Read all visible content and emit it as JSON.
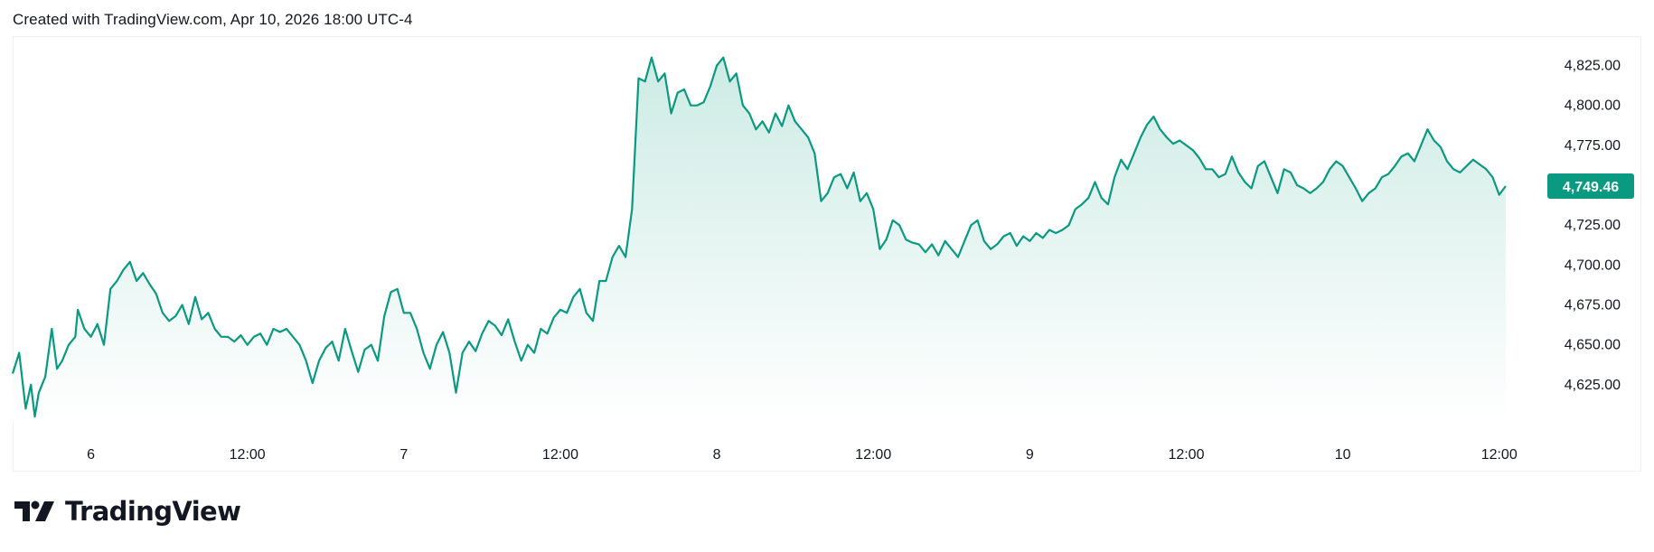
{
  "header": {
    "caption": "Created with TradingView.com, Apr 10, 2026 18:00 UTC-4"
  },
  "brand": {
    "name": "TradingView",
    "logo_icon": "tradingview-logo-icon"
  },
  "colors": {
    "line": "#0a9981",
    "fill_top": "#cdebe4",
    "fill_bottom": "#ffffff",
    "price_badge_bg": "#0a9981",
    "price_badge_text": "#ffffff",
    "axis_text": "#131722",
    "frame": "#eef0f3"
  },
  "chart_data": {
    "type": "area",
    "x_unit": "hours since Apr 5, 2026 18:00 UTC-4",
    "ylim": [
      4600,
      4840
    ],
    "xlim": [
      0,
      117
    ],
    "grid": false,
    "y_ticks": [
      {
        "value": 4625,
        "label": "4,625.00"
      },
      {
        "value": 4650,
        "label": "4,650.00"
      },
      {
        "value": 4675,
        "label": "4,675.00"
      },
      {
        "value": 4700,
        "label": "4,700.00"
      },
      {
        "value": 4725,
        "label": "4,725.00"
      },
      {
        "value": 4750,
        "label": "4,750.00"
      },
      {
        "value": 4775,
        "label": "4,775.00"
      },
      {
        "value": 4800,
        "label": "4,800.00"
      },
      {
        "value": 4825,
        "label": "4,825.00"
      }
    ],
    "x_ticks": [
      {
        "value": 6,
        "label": "6"
      },
      {
        "value": 18,
        "label": "12:00"
      },
      {
        "value": 30,
        "label": "7"
      },
      {
        "value": 42,
        "label": "12:00"
      },
      {
        "value": 54,
        "label": "8"
      },
      {
        "value": 66,
        "label": "12:00"
      },
      {
        "value": 78,
        "label": "9"
      },
      {
        "value": 90,
        "label": "12:00"
      },
      {
        "value": 102,
        "label": "10"
      },
      {
        "value": 114,
        "label": "12:00"
      }
    ],
    "last_price": {
      "value": 4749.46,
      "label": "4,749.46"
    },
    "series": [
      {
        "points": [
          [
            0.0,
            4632
          ],
          [
            0.5,
            4645
          ],
          [
            1.0,
            4610
          ],
          [
            1.4,
            4625
          ],
          [
            1.7,
            4605
          ],
          [
            2.0,
            4620
          ],
          [
            2.5,
            4630
          ],
          [
            3.0,
            4660
          ],
          [
            3.4,
            4635
          ],
          [
            3.8,
            4640
          ],
          [
            4.3,
            4650
          ],
          [
            4.8,
            4655
          ],
          [
            5.0,
            4672
          ],
          [
            5.5,
            4660
          ],
          [
            6.0,
            4655
          ],
          [
            6.5,
            4663
          ],
          [
            7.0,
            4650
          ],
          [
            7.5,
            4685
          ],
          [
            8.0,
            4690
          ],
          [
            8.5,
            4697
          ],
          [
            9.0,
            4702
          ],
          [
            9.5,
            4690
          ],
          [
            10.0,
            4695
          ],
          [
            10.5,
            4688
          ],
          [
            11.0,
            4682
          ],
          [
            11.5,
            4670
          ],
          [
            12.0,
            4665
          ],
          [
            12.5,
            4668
          ],
          [
            13.0,
            4675
          ],
          [
            13.5,
            4663
          ],
          [
            14.0,
            4680
          ],
          [
            14.5,
            4666
          ],
          [
            15.0,
            4670
          ],
          [
            15.5,
            4660
          ],
          [
            16.0,
            4655
          ],
          [
            16.5,
            4655
          ],
          [
            17.0,
            4652
          ],
          [
            17.5,
            4656
          ],
          [
            18.0,
            4650
          ],
          [
            18.5,
            4655
          ],
          [
            19.0,
            4657
          ],
          [
            19.5,
            4650
          ],
          [
            20.0,
            4660
          ],
          [
            20.5,
            4658
          ],
          [
            21.0,
            4660
          ],
          [
            21.5,
            4655
          ],
          [
            22.0,
            4650
          ],
          [
            22.5,
            4640
          ],
          [
            23.0,
            4626
          ],
          [
            23.5,
            4640
          ],
          [
            24.0,
            4648
          ],
          [
            24.5,
            4652
          ],
          [
            25.0,
            4640
          ],
          [
            25.5,
            4660
          ],
          [
            26.0,
            4646
          ],
          [
            26.5,
            4633
          ],
          [
            27.0,
            4647
          ],
          [
            27.5,
            4650
          ],
          [
            28.0,
            4640
          ],
          [
            28.5,
            4668
          ],
          [
            29.0,
            4683
          ],
          [
            29.5,
            4685
          ],
          [
            30.0,
            4670
          ],
          [
            30.5,
            4670
          ],
          [
            31.0,
            4660
          ],
          [
            31.5,
            4645
          ],
          [
            32.0,
            4635
          ],
          [
            32.5,
            4650
          ],
          [
            33.0,
            4658
          ],
          [
            33.5,
            4645
          ],
          [
            34.0,
            4620
          ],
          [
            34.5,
            4645
          ],
          [
            35.0,
            4652
          ],
          [
            35.5,
            4646
          ],
          [
            36.0,
            4657
          ],
          [
            36.5,
            4665
          ],
          [
            37.0,
            4662
          ],
          [
            37.5,
            4656
          ],
          [
            38.0,
            4666
          ],
          [
            38.5,
            4652
          ],
          [
            39.0,
            4640
          ],
          [
            39.5,
            4650
          ],
          [
            40.0,
            4645
          ],
          [
            40.5,
            4660
          ],
          [
            41.0,
            4657
          ],
          [
            41.5,
            4667
          ],
          [
            42.0,
            4672
          ],
          [
            42.5,
            4670
          ],
          [
            43.0,
            4680
          ],
          [
            43.5,
            4685
          ],
          [
            44.0,
            4670
          ],
          [
            44.5,
            4665
          ],
          [
            45.0,
            4690
          ],
          [
            45.5,
            4690
          ],
          [
            46.0,
            4705
          ],
          [
            46.5,
            4712
          ],
          [
            47.0,
            4705
          ],
          [
            47.5,
            4735
          ],
          [
            48.0,
            4817
          ],
          [
            48.5,
            4815
          ],
          [
            49.0,
            4830
          ],
          [
            49.5,
            4815
          ],
          [
            50.0,
            4820
          ],
          [
            50.5,
            4795
          ],
          [
            51.0,
            4808
          ],
          [
            51.5,
            4810
          ],
          [
            52.0,
            4800
          ],
          [
            52.5,
            4800
          ],
          [
            53.0,
            4802
          ],
          [
            53.5,
            4812
          ],
          [
            54.0,
            4825
          ],
          [
            54.5,
            4830
          ],
          [
            55.0,
            4815
          ],
          [
            55.5,
            4820
          ],
          [
            56.0,
            4800
          ],
          [
            56.5,
            4795
          ],
          [
            57.0,
            4785
          ],
          [
            57.5,
            4790
          ],
          [
            58.0,
            4783
          ],
          [
            58.5,
            4795
          ],
          [
            59.0,
            4787
          ],
          [
            59.5,
            4800
          ],
          [
            60.0,
            4790
          ],
          [
            60.5,
            4785
          ],
          [
            61.0,
            4780
          ],
          [
            61.5,
            4770
          ],
          [
            62.0,
            4740
          ],
          [
            62.5,
            4745
          ],
          [
            63.0,
            4755
          ],
          [
            63.5,
            4757
          ],
          [
            64.0,
            4748
          ],
          [
            64.5,
            4758
          ],
          [
            65.0,
            4740
          ],
          [
            65.5,
            4745
          ],
          [
            66.0,
            4735
          ],
          [
            66.5,
            4710
          ],
          [
            67.0,
            4716
          ],
          [
            67.5,
            4728
          ],
          [
            68.0,
            4725
          ],
          [
            68.5,
            4716
          ],
          [
            69.0,
            4714
          ],
          [
            69.5,
            4713
          ],
          [
            70.0,
            4708
          ],
          [
            70.5,
            4713
          ],
          [
            71.0,
            4706
          ],
          [
            71.5,
            4715
          ],
          [
            72.0,
            4710
          ],
          [
            72.5,
            4705
          ],
          [
            73.0,
            4715
          ],
          [
            73.5,
            4725
          ],
          [
            74.0,
            4728
          ],
          [
            74.5,
            4715
          ],
          [
            75.0,
            4710
          ],
          [
            75.5,
            4713
          ],
          [
            76.0,
            4718
          ],
          [
            76.5,
            4720
          ],
          [
            77.0,
            4712
          ],
          [
            77.5,
            4718
          ],
          [
            78.0,
            4715
          ],
          [
            78.5,
            4720
          ],
          [
            79.0,
            4717
          ],
          [
            79.5,
            4722
          ],
          [
            80.0,
            4720
          ],
          [
            80.5,
            4722
          ],
          [
            81.0,
            4725
          ],
          [
            81.5,
            4735
          ],
          [
            82.0,
            4738
          ],
          [
            82.5,
            4742
          ],
          [
            83.0,
            4752
          ],
          [
            83.5,
            4742
          ],
          [
            84.0,
            4738
          ],
          [
            84.5,
            4755
          ],
          [
            85.0,
            4766
          ],
          [
            85.5,
            4760
          ],
          [
            86.0,
            4770
          ],
          [
            86.5,
            4780
          ],
          [
            87.0,
            4788
          ],
          [
            87.5,
            4793
          ],
          [
            88.0,
            4785
          ],
          [
            88.5,
            4780
          ],
          [
            89.0,
            4776
          ],
          [
            89.5,
            4778
          ],
          [
            90.0,
            4775
          ],
          [
            90.5,
            4772
          ],
          [
            91.0,
            4767
          ],
          [
            91.5,
            4760
          ],
          [
            92.0,
            4760
          ],
          [
            92.5,
            4755
          ],
          [
            93.0,
            4757
          ],
          [
            93.5,
            4768
          ],
          [
            94.0,
            4758
          ],
          [
            94.5,
            4752
          ],
          [
            95.0,
            4748
          ],
          [
            95.5,
            4762
          ],
          [
            96.0,
            4765
          ],
          [
            96.5,
            4755
          ],
          [
            97.0,
            4745
          ],
          [
            97.5,
            4760
          ],
          [
            98.0,
            4758
          ],
          [
            98.5,
            4750
          ],
          [
            99.0,
            4748
          ],
          [
            99.5,
            4745
          ],
          [
            100.0,
            4748
          ],
          [
            100.5,
            4752
          ],
          [
            101.0,
            4760
          ],
          [
            101.5,
            4765
          ],
          [
            102.0,
            4762
          ],
          [
            102.5,
            4755
          ],
          [
            103.0,
            4748
          ],
          [
            103.5,
            4740
          ],
          [
            104.0,
            4745
          ],
          [
            104.5,
            4748
          ],
          [
            105.0,
            4755
          ],
          [
            105.5,
            4757
          ],
          [
            106.0,
            4762
          ],
          [
            106.5,
            4768
          ],
          [
            107.0,
            4770
          ],
          [
            107.5,
            4765
          ],
          [
            108.0,
            4775
          ],
          [
            108.5,
            4785
          ],
          [
            109.0,
            4778
          ],
          [
            109.5,
            4774
          ],
          [
            110.0,
            4765
          ],
          [
            110.5,
            4760
          ],
          [
            111.0,
            4758
          ],
          [
            111.5,
            4762
          ],
          [
            112.0,
            4766
          ],
          [
            112.5,
            4763
          ],
          [
            113.0,
            4760
          ],
          [
            113.5,
            4755
          ],
          [
            114.0,
            4744
          ],
          [
            114.5,
            4749.46
          ]
        ]
      }
    ]
  }
}
